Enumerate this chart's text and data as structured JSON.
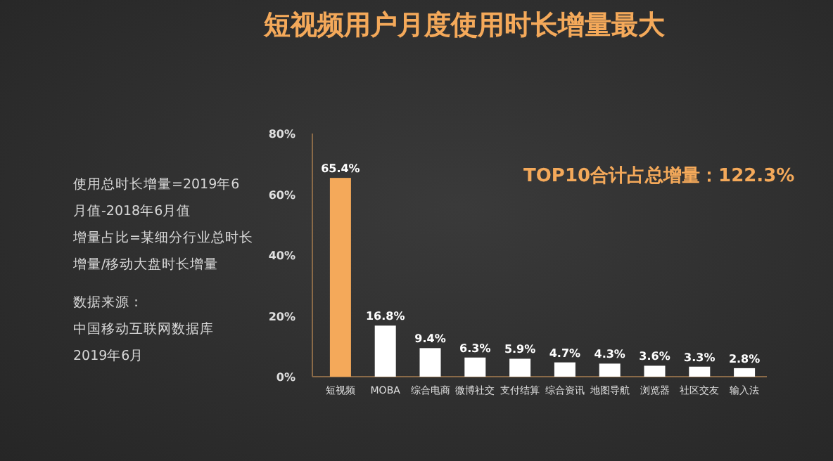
{
  "chart_data": {
    "type": "bar",
    "title": "短视频用户月度使用时长增量最大",
    "categories": [
      "短视频",
      "MOBA",
      "综合电商",
      "微博社交",
      "支付结算",
      "综合资讯",
      "地图导航",
      "浏览器",
      "社区交友",
      "输入法"
    ],
    "values": [
      65.4,
      16.8,
      9.4,
      6.3,
      5.9,
      4.7,
      4.3,
      3.6,
      3.3,
      2.8
    ],
    "colors": [
      "#f4a95a",
      "#ffffff",
      "#ffffff",
      "#ffffff",
      "#ffffff",
      "#ffffff",
      "#ffffff",
      "#ffffff",
      "#ffffff",
      "#ffffff"
    ],
    "value_labels": [
      "65.4%",
      "16.8%",
      "9.4%",
      "6.3%",
      "5.9%",
      "4.7%",
      "4.3%",
      "3.6%",
      "3.3%",
      "2.8%"
    ],
    "ylim": [
      0,
      80
    ],
    "yticks": [
      {
        "value": 0,
        "label": "0%"
      },
      {
        "value": 20,
        "label": "20%"
      },
      {
        "value": 40,
        "label": "40%"
      },
      {
        "value": 60,
        "label": "60%"
      },
      {
        "value": 80,
        "label": "80%"
      }
    ],
    "grid": false,
    "annotations": [
      "TOP10合计占总增量：122.3%",
      "使用总时长增量=2019年6月值-2018年6月值",
      "增量占比=某细分行业总时长增量/移动大盘时长增量",
      "数据来源：",
      "中国移动互联网数据库",
      "2019年6月"
    ]
  }
}
